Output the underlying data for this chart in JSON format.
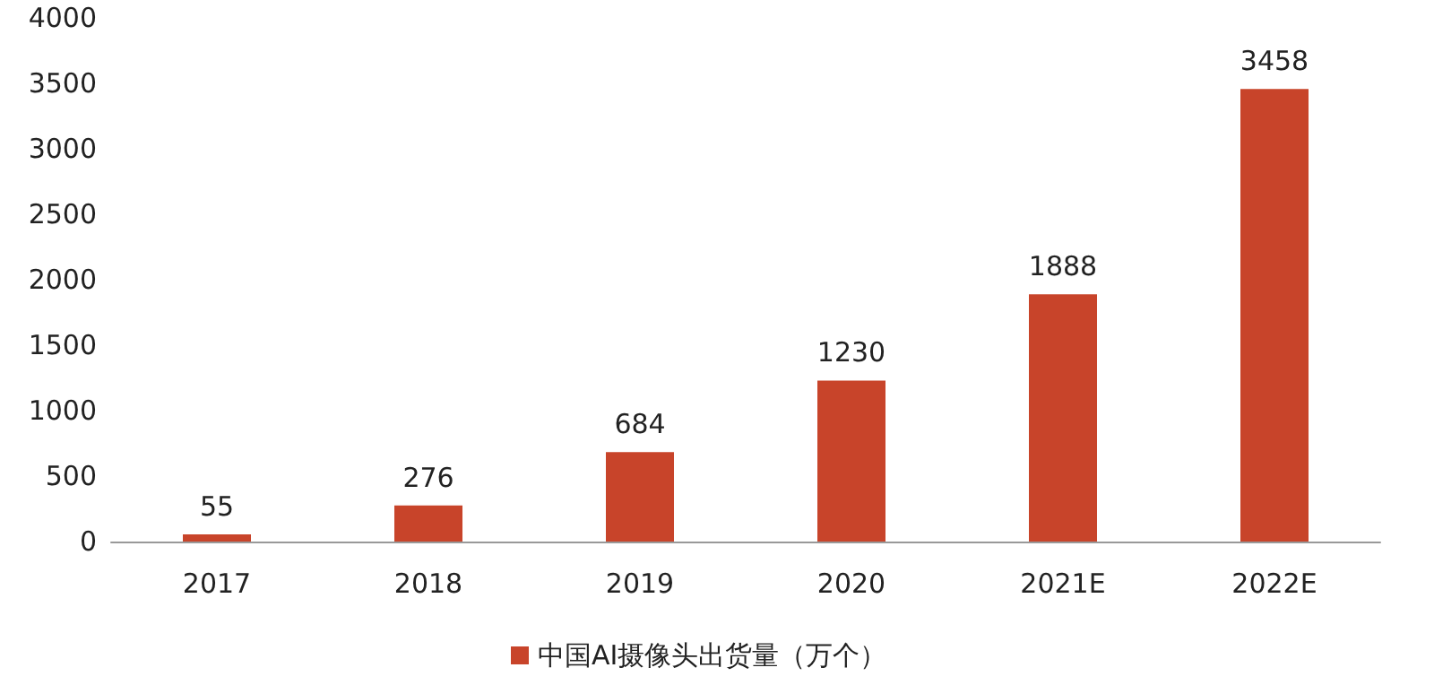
{
  "chart_data": {
    "type": "bar",
    "categories": [
      "2017",
      "2018",
      "2019",
      "2020",
      "2021E",
      "2022E"
    ],
    "series": [
      {
        "name": "中国AI摄像头出货量（万个）",
        "color": "#c8442a",
        "values": [
          55,
          276,
          684,
          1230,
          1888,
          3458
        ]
      }
    ],
    "ylim": [
      0,
      4000
    ],
    "yticks": [
      0,
      500,
      1000,
      1500,
      2000,
      2500,
      3000,
      3500,
      4000
    ],
    "grid": false,
    "legend": "bottom",
    "data_labels": true
  }
}
